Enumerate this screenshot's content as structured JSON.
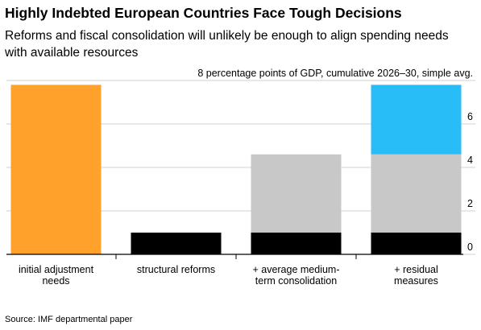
{
  "chart_data": {
    "type": "stacked_bar",
    "title": "Highly Indebted European Countries Face Tough Decisions",
    "subtitle": "Reforms and fiscal consolidation will unlikely be enough to align spending needs with available resources",
    "source": "Source: IMF departmental paper",
    "categories": [
      "initial adjustment needs",
      "structural reforms",
      "+ average medium-term consolidation",
      "+ residual measures"
    ],
    "series": [
      {
        "color": "#ffa12b",
        "values": [
          7.8,
          null,
          null,
          null
        ]
      },
      {
        "color": "#000000",
        "values": [
          null,
          1.0,
          1.0,
          1.0
        ]
      },
      {
        "color": "#c8c8c8",
        "values": [
          null,
          null,
          3.6,
          3.6
        ]
      },
      {
        "color": "#29bdf8",
        "values": [
          null,
          null,
          null,
          3.2
        ]
      }
    ],
    "ylim": [
      0,
      8
    ],
    "yticks": [
      0,
      2,
      4,
      6,
      {
        "value": 8,
        "label": "8 percentage points of GDP, cumulative 2026–30, simple avg."
      }
    ],
    "grid": true
  }
}
